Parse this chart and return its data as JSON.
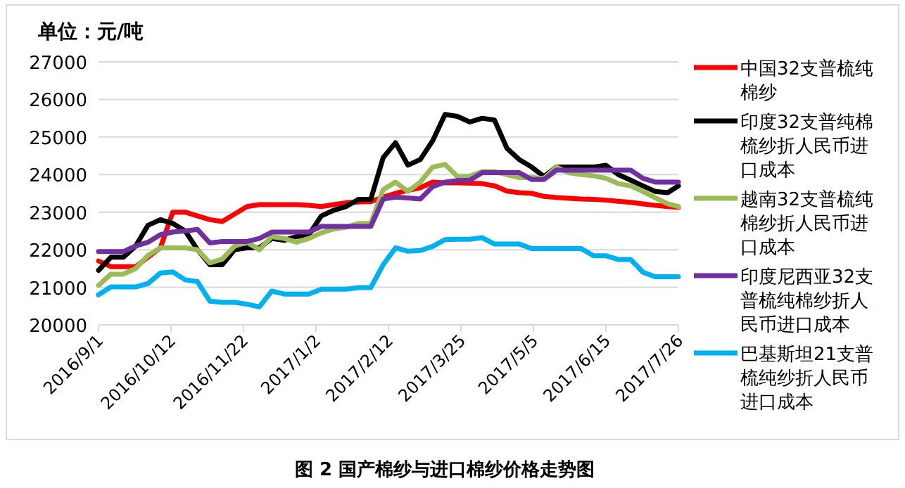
{
  "chart_data": {
    "type": "line",
    "title": "图 2 国产棉纱与进口棉纱价格走势图",
    "ylabel": "单位：元/吨",
    "legend": "right",
    "grid": "y",
    "marker": "none",
    "line_style": "solid",
    "xlim": [
      "2016-09-01",
      "2017-07-26"
    ],
    "xticks": [
      {
        "value": "2016-09-01",
        "label": "2016/9/1"
      },
      {
        "value": "2016-10-12",
        "label": "2016/10/12"
      },
      {
        "value": "2016-11-22",
        "label": "2016/11/22"
      },
      {
        "value": "2017-01-02",
        "label": "2017/1/2"
      },
      {
        "value": "2017-02-12",
        "label": "2017/2/12"
      },
      {
        "value": "2017-03-25",
        "label": "2017/3/25"
      },
      {
        "value": "2017-05-05",
        "label": "2017/5/5"
      },
      {
        "value": "2017-06-15",
        "label": "2017/6/15"
      },
      {
        "value": "2017-07-26",
        "label": "2017/7/26"
      }
    ],
    "ylim": [
      20000,
      27000
    ],
    "yticks": [
      20000,
      21000,
      22000,
      23000,
      24000,
      25000,
      26000,
      27000
    ],
    "x": [
      "2016-09-01",
      "2016-09-08",
      "2016-09-15",
      "2016-09-22",
      "2016-09-29",
      "2016-10-06",
      "2016-10-13",
      "2016-10-20",
      "2016-10-27",
      "2016-11-03",
      "2016-11-10",
      "2016-11-17",
      "2016-11-24",
      "2016-12-01",
      "2016-12-08",
      "2016-12-15",
      "2016-12-22",
      "2016-12-29",
      "2017-01-05",
      "2017-01-12",
      "2017-01-19",
      "2017-01-26",
      "2017-02-02",
      "2017-02-09",
      "2017-02-16",
      "2017-02-23",
      "2017-03-02",
      "2017-03-09",
      "2017-03-16",
      "2017-03-23",
      "2017-03-30",
      "2017-04-06",
      "2017-04-13",
      "2017-04-20",
      "2017-04-27",
      "2017-05-04",
      "2017-05-11",
      "2017-05-18",
      "2017-05-25",
      "2017-06-01",
      "2017-06-08",
      "2017-06-15",
      "2017-06-22",
      "2017-06-29",
      "2017-07-06",
      "2017-07-13",
      "2017-07-20",
      "2017-07-26"
    ],
    "series": [
      {
        "name": "中国32支普梳纯棉纱",
        "color": "#ff0000",
        "values": [
          21700,
          21550,
          21550,
          21550,
          21800,
          22050,
          23000,
          23000,
          22900,
          22800,
          22750,
          22950,
          23150,
          23200,
          23200,
          23200,
          23200,
          23180,
          23150,
          23200,
          23250,
          23270,
          23280,
          23400,
          23500,
          23580,
          23650,
          23800,
          23780,
          23780,
          23770,
          23760,
          23700,
          23560,
          23520,
          23500,
          23420,
          23390,
          23370,
          23350,
          23340,
          23320,
          23290,
          23260,
          23220,
          23180,
          23150,
          23130
        ]
      },
      {
        "name": "印度32支普纯棉梳纱折人民币进口成本",
        "color": "#000000",
        "values": [
          21450,
          21800,
          21800,
          22100,
          22650,
          22800,
          22700,
          22500,
          22000,
          21600,
          21600,
          22000,
          22050,
          22050,
          22300,
          22250,
          22350,
          22400,
          22900,
          23050,
          23150,
          23340,
          23340,
          24450,
          24850,
          24250,
          24400,
          24900,
          25600,
          25550,
          25400,
          25500,
          25450,
          24700,
          24400,
          24200,
          23950,
          24200,
          24200,
          24200,
          24200,
          24250,
          24000,
          23850,
          23700,
          23550,
          23520,
          23700
        ]
      },
      {
        "name": "越南32支普梳纯棉纱折人民币进口成本",
        "color": "#9bbb59",
        "values": [
          21050,
          21350,
          21350,
          21500,
          21850,
          22050,
          22050,
          22050,
          22000,
          21650,
          21750,
          22100,
          22200,
          22000,
          22350,
          22300,
          22200,
          22300,
          22450,
          22550,
          22600,
          22700,
          22700,
          23600,
          23800,
          23550,
          23800,
          24200,
          24270,
          23950,
          23960,
          24080,
          24080,
          24000,
          23920,
          23920,
          23900,
          24200,
          24050,
          24000,
          23970,
          23900,
          23760,
          23700,
          23550,
          23380,
          23220,
          23150
        ]
      },
      {
        "name": "印度尼西亚32支普梳纯棉纱折人民币进口成本",
        "color": "#7030a0",
        "values": [
          21950,
          21950,
          21950,
          22100,
          22200,
          22400,
          22470,
          22500,
          22540,
          22180,
          22220,
          22220,
          22220,
          22300,
          22470,
          22470,
          22470,
          22470,
          22620,
          22620,
          22620,
          22620,
          22620,
          23350,
          23400,
          23380,
          23350,
          23680,
          23800,
          23840,
          23850,
          24050,
          24050,
          24050,
          24050,
          23870,
          23870,
          24120,
          24120,
          24120,
          24120,
          24120,
          24120,
          24120,
          23900,
          23800,
          23800,
          23800
        ]
      },
      {
        "name": "巴基斯坦21支普梳纯纱折人民币进口成本",
        "color": "#00b0f0",
        "values": [
          20800,
          21010,
          21010,
          21010,
          21100,
          21380,
          21410,
          21200,
          21150,
          20630,
          20600,
          20600,
          20550,
          20480,
          20900,
          20820,
          20820,
          20820,
          20950,
          20950,
          20950,
          20990,
          20990,
          21600,
          22050,
          21960,
          21980,
          22090,
          22270,
          22280,
          22280,
          22320,
          22150,
          22150,
          22150,
          22030,
          22030,
          22030,
          22030,
          22030,
          21840,
          21840,
          21740,
          21740,
          21400,
          21280,
          21280,
          21280
        ]
      }
    ]
  }
}
